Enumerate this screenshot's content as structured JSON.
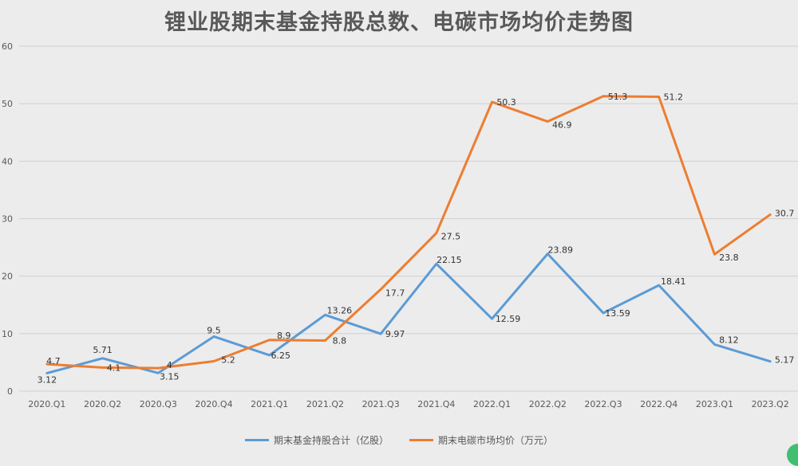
{
  "chart_data": {
    "type": "line",
    "title": "锂业股期末基金持股总数、电碳市场均价走势图",
    "categories": [
      "2020.Q1",
      "2020.Q2",
      "2020.Q3",
      "2020.Q4",
      "2021.Q1",
      "2021.Q2",
      "2021.Q3",
      "2021.Q4",
      "2022.Q1",
      "2022.Q2",
      "2022.Q3",
      "2022.Q4",
      "2023.Q1",
      "2023.Q2"
    ],
    "ylim": [
      0,
      60
    ],
    "yticks": [
      0,
      10,
      20,
      30,
      40,
      50,
      60
    ],
    "grid": true,
    "legend_position": "bottom",
    "series": [
      {
        "name": "期末基金持股合计（亿股）",
        "color": "#5b9bd5",
        "values": [
          3.12,
          5.71,
          3.15,
          9.5,
          6.25,
          13.26,
          9.97,
          22.15,
          12.59,
          23.89,
          13.59,
          18.41,
          8.12,
          5.17
        ],
        "labels": [
          "3.12",
          "5.71",
          "3.15",
          "9.5",
          "6.25",
          "13.26",
          "9.97",
          "22.15",
          "12.59",
          "23.89",
          "13.59",
          "18.41",
          "8.12",
          "5.17"
        ]
      },
      {
        "name": "期末电碳市场均价（万元）",
        "color": "#ed7d31",
        "values": [
          4.7,
          4.1,
          4,
          5.2,
          8.9,
          8.8,
          17.7,
          27.5,
          50.3,
          46.9,
          51.3,
          51.2,
          23.8,
          30.7
        ],
        "labels": [
          "4.7",
          "4.1",
          "4",
          "5.2",
          "8.9",
          "8.8",
          "17.7",
          "27.5",
          "50.3",
          "46.9",
          "51.3",
          "51.2",
          "23.8",
          "30.7"
        ]
      }
    ]
  }
}
